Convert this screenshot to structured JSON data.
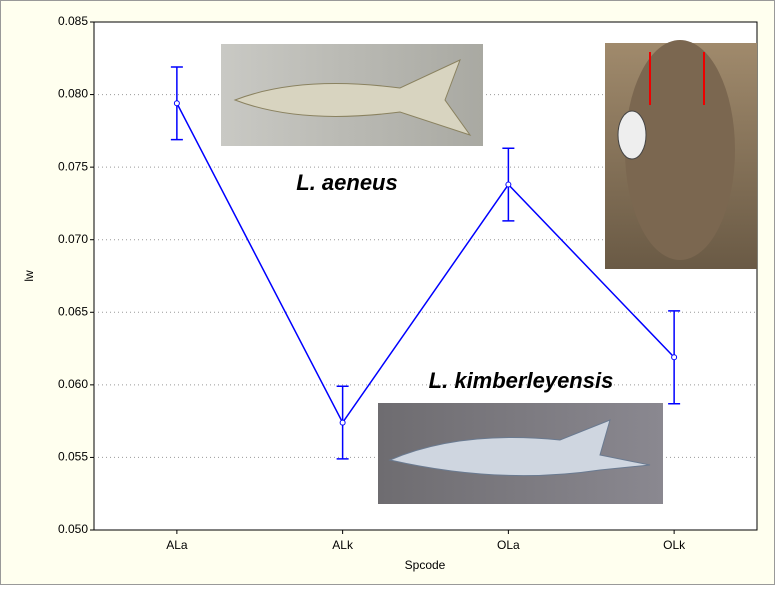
{
  "chart_data": {
    "type": "line",
    "x_label": "Spcode",
    "y_label": "lw",
    "categories": [
      "ALa",
      "ALk",
      "OLa",
      "OLk"
    ],
    "series": [
      {
        "color": "#0000ff",
        "values": [
          0.0794,
          0.0574,
          0.0738,
          0.0619
        ],
        "errors": [
          0.0025,
          0.0025,
          0.0025,
          0.0032
        ]
      }
    ],
    "ylim": [
      0.05,
      0.085
    ],
    "yticks": [
      {
        "value": 0.05,
        "label": "0.050"
      },
      0.055,
      {
        "value": 0.06,
        "label": "0.060"
      },
      0.065,
      {
        "value": 0.07,
        "label": "0.070"
      },
      0.075,
      {
        "value": 0.08,
        "label": "0.080"
      },
      0.085
    ],
    "grid": true,
    "annotations": [
      "L. aeneus",
      "L. kimberleyensis"
    ]
  }
}
